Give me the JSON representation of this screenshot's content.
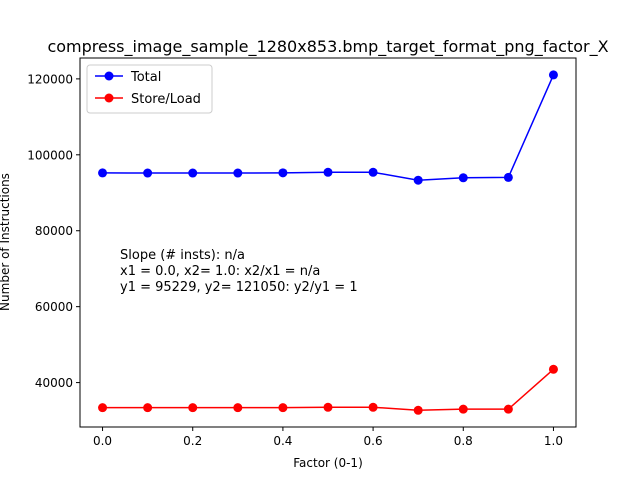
{
  "chart_data": {
    "type": "line",
    "title": "compress_image_sample_1280x853.bmp_target_format_png_factor_X",
    "xlabel": "Factor (0-1)",
    "ylabel": "Number of Instructions",
    "xlim": [
      -0.05,
      1.05
    ],
    "ylim": [
      28300,
      125500
    ],
    "x_ticks": [
      0.0,
      0.2,
      0.4,
      0.6,
      0.8,
      1.0
    ],
    "x_tick_labels": [
      "0.0",
      "0.2",
      "0.4",
      "0.6",
      "0.8",
      "1.0"
    ],
    "y_ticks": [
      40000,
      60000,
      80000,
      100000,
      120000
    ],
    "y_tick_labels": [
      "40000",
      "60000",
      "80000",
      "100000",
      "120000"
    ],
    "grid": false,
    "legend_position": "top-left",
    "x": [
      0.0,
      0.1,
      0.2,
      0.3,
      0.4,
      0.5,
      0.6,
      0.7,
      0.8,
      0.9,
      1.0
    ],
    "series": [
      {
        "name": "Total",
        "color": "#0000ff",
        "values": [
          95229,
          95200,
          95200,
          95200,
          95250,
          95400,
          95400,
          93300,
          93950,
          94050,
          121050
        ]
      },
      {
        "name": "Store/Load",
        "color": "#ff0000",
        "values": [
          33400,
          33400,
          33400,
          33400,
          33400,
          33500,
          33500,
          32700,
          33000,
          33000,
          43500
        ]
      }
    ],
    "annotation": [
      "Slope (# insts): n/a",
      "x1 = 0.0, x2= 1.0: x2/x1 = n/a",
      "y1 = 95229, y2= 121050: y2/y1 = 1"
    ]
  }
}
